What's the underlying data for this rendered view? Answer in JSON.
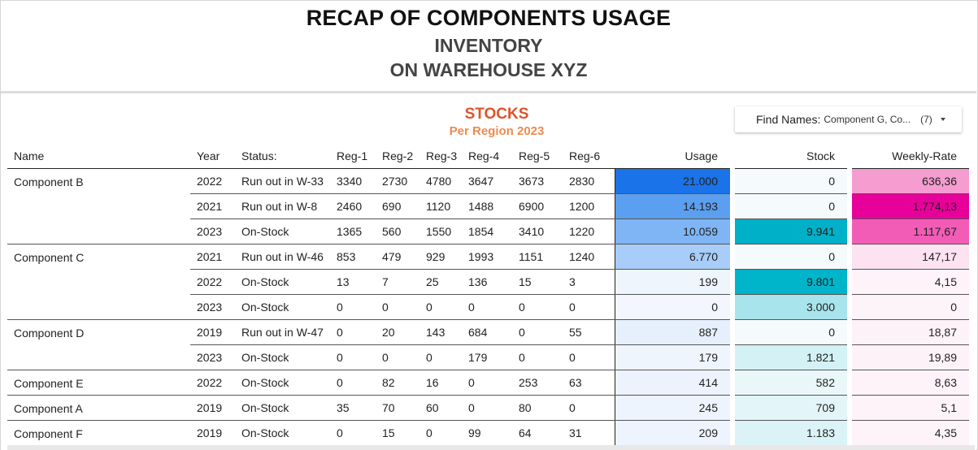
{
  "header": {
    "title": "RECAP OF COMPONENTS USAGE",
    "subtitle1": "INVENTORY",
    "subtitle2": "ON WAREHOUSE XYZ"
  },
  "panel": {
    "title": "STOCKS",
    "subtitle": "Per Region 2023"
  },
  "filter": {
    "label": "Find Names:",
    "value": "Component G, Co...",
    "count": "(7)"
  },
  "table": {
    "columns": [
      "Name",
      "Year",
      "Status:",
      "Reg-1",
      "Reg-2",
      "Reg-3",
      "Reg-4",
      "Reg-5",
      "Reg-6",
      "Usage",
      "Stock",
      "Weekly-Rate"
    ],
    "rows": [
      {
        "name": "Component B",
        "year": "2022",
        "status": "Run out in W-33",
        "r1": "3340",
        "r2": "2730",
        "r3": "4780",
        "r4": "3647",
        "r5": "3673",
        "r6": "2830",
        "usage": "21.000",
        "stock": "0",
        "rate": "636,36",
        "usage_bg": "#1a73e8",
        "stock_bg": "#f5fbfd",
        "rate_bg": "#f59cd0",
        "group_start": true,
        "group_end": false
      },
      {
        "name": "",
        "year": "2021",
        "status": "Run out in W-8",
        "r1": "2460",
        "r2": "690",
        "r3": "1120",
        "r4": "1488",
        "r5": "6900",
        "r6": "1200",
        "usage": "14.193",
        "stock": "0",
        "rate": "1.774,13",
        "usage_bg": "#5b9ff0",
        "stock_bg": "#f5fbfd",
        "rate_bg": "#e8009a",
        "group_start": false,
        "group_end": false
      },
      {
        "name": "",
        "year": "2023",
        "status": "On-Stock",
        "r1": "1365",
        "r2": "560",
        "r3": "1550",
        "r4": "1854",
        "r5": "3410",
        "r6": "1220",
        "usage": "10.059",
        "stock": "9.941",
        "rate": "1.117,67",
        "usage_bg": "#7fb5f4",
        "stock_bg": "#00b0c8",
        "rate_bg": "#f25cb7",
        "group_start": false,
        "group_end": true
      },
      {
        "name": "Component C",
        "year": "2021",
        "status": "Run out in W-46",
        "r1": "853",
        "r2": "479",
        "r3": "929",
        "r4": "1993",
        "r5": "1151",
        "r6": "1240",
        "usage": "6.770",
        "stock": "0",
        "rate": "147,17",
        "usage_bg": "#a7cdf8",
        "stock_bg": "#f5fbfd",
        "rate_bg": "#fde2f2",
        "group_start": true,
        "group_end": false
      },
      {
        "name": "",
        "year": "2022",
        "status": "On-Stock",
        "r1": "13",
        "r2": "7",
        "r3": "25",
        "r4": "136",
        "r5": "15",
        "r6": "3",
        "usage": "199",
        "stock": "9.801",
        "rate": "4,15",
        "usage_bg": "#eff5fd",
        "stock_bg": "#00b4c9",
        "rate_bg": "#fdf3f9",
        "group_start": false,
        "group_end": false
      },
      {
        "name": "",
        "year": "2023",
        "status": "On-Stock",
        "r1": "0",
        "r2": "0",
        "r3": "0",
        "r4": "0",
        "r5": "0",
        "r6": "0",
        "usage": "0",
        "stock": "3.000",
        "rate": "0",
        "usage_bg": "#f3f7fd",
        "stock_bg": "#a8e4ec",
        "rate_bg": "#fdf4f9",
        "group_start": false,
        "group_end": true
      },
      {
        "name": "Component D",
        "year": "2019",
        "status": "Run out in W-47",
        "r1": "0",
        "r2": "20",
        "r3": "143",
        "r4": "684",
        "r5": "0",
        "r6": "55",
        "usage": "887",
        "stock": "0",
        "rate": "18,87",
        "usage_bg": "#e6effc",
        "stock_bg": "#f5fbfd",
        "rate_bg": "#fdf2f8",
        "group_start": true,
        "group_end": false
      },
      {
        "name": "",
        "year": "2023",
        "status": "On-Stock",
        "r1": "0",
        "r2": "0",
        "r3": "0",
        "r4": "179",
        "r5": "0",
        "r6": "0",
        "usage": "179",
        "stock": "1.821",
        "rate": "19,89",
        "usage_bg": "#eff5fd",
        "stock_bg": "#d4f1f5",
        "rate_bg": "#fdf2f8",
        "group_start": false,
        "group_end": true
      },
      {
        "name": "Component E",
        "year": "2022",
        "status": "On-Stock",
        "r1": "0",
        "r2": "82",
        "r3": "16",
        "r4": "0",
        "r5": "253",
        "r6": "63",
        "usage": "414",
        "stock": "582",
        "rate": "8,63",
        "usage_bg": "#ecf3fd",
        "stock_bg": "#eaf7f9",
        "rate_bg": "#fdf3f9",
        "group_start": true,
        "group_end": true
      },
      {
        "name": "Component A",
        "year": "2019",
        "status": "On-Stock",
        "r1": "35",
        "r2": "70",
        "r3": "60",
        "r4": "0",
        "r5": "80",
        "r6": "0",
        "usage": "245",
        "stock": "709",
        "rate": "5,1",
        "usage_bg": "#eef4fd",
        "stock_bg": "#e3f5f8",
        "rate_bg": "#fdf3f9",
        "group_start": true,
        "group_end": true
      },
      {
        "name": "Component F",
        "year": "2019",
        "status": "On-Stock",
        "r1": "0",
        "r2": "15",
        "r3": "0",
        "r4": "99",
        "r5": "64",
        "r6": "31",
        "usage": "209",
        "stock": "1.183",
        "rate": "4,35",
        "usage_bg": "#eef4fd",
        "stock_bg": "#dbf3f6",
        "rate_bg": "#fdf3f9",
        "group_start": true,
        "group_end": true
      }
    ]
  }
}
